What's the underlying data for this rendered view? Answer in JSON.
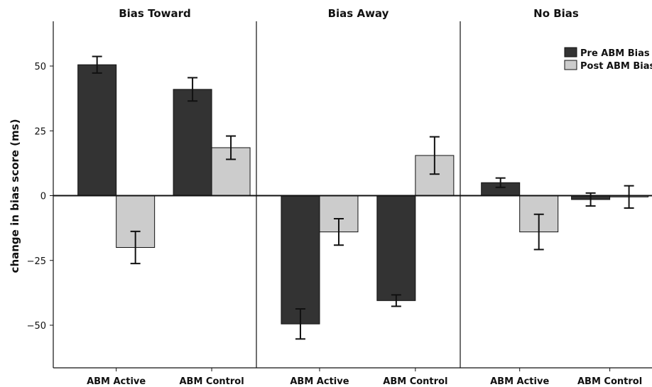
{
  "chart_data": {
    "type": "bar",
    "ylabel": "change in bias score (ms)",
    "ylim": [
      -66,
      65
    ],
    "yticks": [
      50,
      25,
      0,
      -25,
      -50
    ],
    "categories": [
      "ABM Active",
      "ABM Control"
    ],
    "legend": {
      "placement": "top-right",
      "entries": [
        "Pre ABM Bias",
        "Post ABM Bias"
      ]
    },
    "colors": {
      "pre": "#333333",
      "post": "#cccccc"
    },
    "panels": [
      {
        "title": "Bias Toward",
        "series": [
          {
            "name": "Pre ABM Bias",
            "values": [
              50.5,
              41
            ],
            "errors": [
              3.2,
              4.5
            ]
          },
          {
            "name": "Post ABM Bias",
            "values": [
              -20,
              18.5
            ],
            "errors": [
              6.2,
              4.5
            ]
          }
        ]
      },
      {
        "title": "Bias Away",
        "series": [
          {
            "name": "Pre ABM Bias",
            "values": [
              -49.5,
              -40.5
            ],
            "errors": [
              5.8,
              2.2
            ]
          },
          {
            "name": "Post ABM Bias",
            "values": [
              -14,
              15.5
            ],
            "errors": [
              5.1,
              7.2
            ]
          }
        ]
      },
      {
        "title": "No Bias",
        "series": [
          {
            "name": "Pre ABM Bias",
            "values": [
              5,
              -1.5
            ],
            "errors": [
              1.8,
              2.5
            ]
          },
          {
            "name": "Post ABM Bias",
            "values": [
              -14,
              -0.5
            ],
            "errors": [
              6.8,
              4.3
            ]
          }
        ]
      }
    ]
  }
}
